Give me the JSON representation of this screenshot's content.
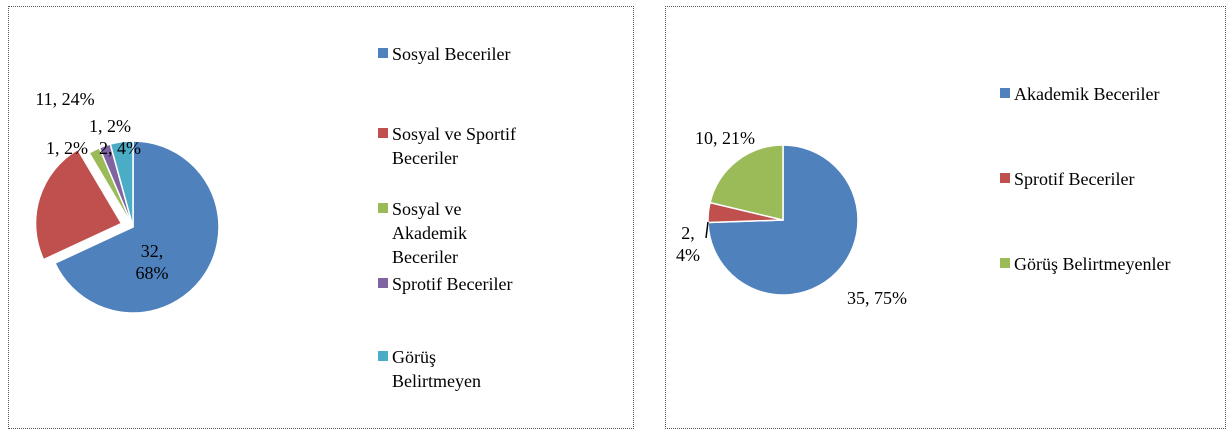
{
  "chart_data": [
    {
      "type": "pie",
      "categories": [
        "Sosyal Beceriler",
        "Sosyal ve Sportif Beceriler",
        "Sosyal ve Akademik Beceriler",
        "Sprotif Beceriler",
        "Görüş Belirtmeyen"
      ],
      "values": [
        32,
        11,
        1,
        1,
        2
      ],
      "value_labels": [
        "32, 68%",
        "11, 24%",
        "1, 2%",
        "1, 2%",
        "2, 4%"
      ],
      "colors": [
        "#4f81bd",
        "#c0504d",
        "#9bbb59",
        "#8064a2",
        "#4bacc6"
      ],
      "exploded": [
        1
      ],
      "legend": "right"
    },
    {
      "type": "pie",
      "categories": [
        "Akademik Beceriler",
        "Sprotif Beceriler",
        "Görüş Belirtmeyenler"
      ],
      "values": [
        35,
        2,
        10
      ],
      "value_labels": [
        "35, 75%",
        "2, 4%",
        "10, 21%"
      ],
      "colors": [
        "#4f81bd",
        "#c0504d",
        "#9bbb59"
      ],
      "legend": "right"
    }
  ]
}
